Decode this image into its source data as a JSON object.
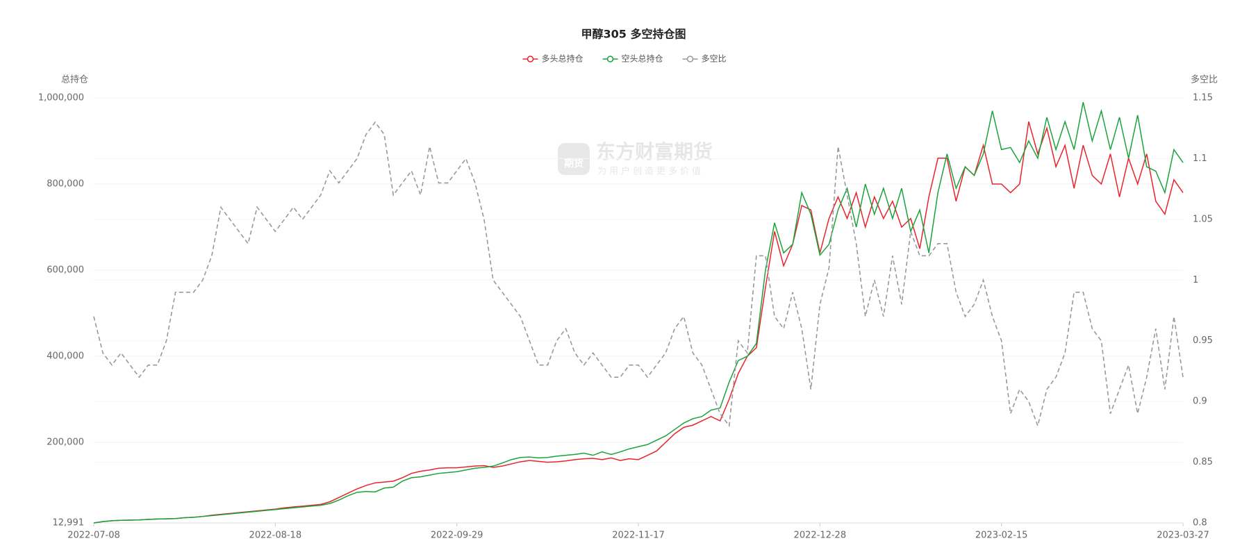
{
  "chart_data": {
    "type": "line",
    "title": "甲醇305 多空持仓图",
    "y_label": "总持仓",
    "y2_label": "多空比",
    "watermark": [
      "东方财富期货",
      "为用户创造更多价值",
      "期货"
    ],
    "grid": true,
    "legend": "top",
    "categories": [
      "2022-07-08",
      null,
      null,
      null,
      null,
      null,
      null,
      null,
      null,
      null,
      null,
      null,
      null,
      null,
      null,
      null,
      null,
      null,
      null,
      null,
      "2022-08-18",
      null,
      null,
      null,
      null,
      null,
      null,
      null,
      null,
      null,
      null,
      null,
      null,
      null,
      null,
      null,
      null,
      null,
      null,
      null,
      "2022-09-29",
      null,
      null,
      null,
      null,
      null,
      null,
      null,
      null,
      null,
      null,
      null,
      null,
      null,
      null,
      null,
      null,
      null,
      null,
      null,
      "2022-11-17",
      null,
      null,
      null,
      null,
      null,
      null,
      null,
      null,
      null,
      null,
      null,
      null,
      null,
      null,
      null,
      null,
      null,
      null,
      null,
      "2022-12-28",
      null,
      null,
      null,
      null,
      null,
      null,
      null,
      null,
      null,
      null,
      null,
      null,
      null,
      null,
      null,
      null,
      null,
      null,
      null,
      "2023-02-15",
      null,
      null,
      null,
      null,
      null,
      null,
      null,
      null,
      null,
      null,
      null,
      null,
      null,
      null,
      null,
      null,
      null,
      null,
      null,
      "2023-03-27"
    ],
    "ylim": [
      12991,
      1000000
    ],
    "yticks": [
      {
        "value": 12991,
        "label": "12,991"
      },
      {
        "value": 200000,
        "label": "200,000"
      },
      {
        "value": 400000,
        "label": "400,000"
      },
      {
        "value": 600000,
        "label": "600,000"
      },
      {
        "value": 800000,
        "label": "800,000"
      },
      {
        "value": 1000000,
        "label": "1,000,000"
      }
    ],
    "y2lim": [
      0.8,
      1.15
    ],
    "y2ticks": [
      0.8,
      0.85,
      0.9,
      0.95,
      1,
      1.05,
      1.1,
      1.15
    ],
    "series": [
      {
        "name": "多头总持仓",
        "color": "#e8232b",
        "dashed": false,
        "values": [
          12991,
          16000,
          18000,
          19000,
          19500,
          20000,
          21000,
          22000,
          22500,
          23000,
          25000,
          26000,
          28000,
          31000,
          33000,
          35000,
          37000,
          39000,
          41000,
          43000,
          45000,
          48000,
          50000,
          52000,
          54000,
          56000,
          62000,
          72000,
          82000,
          92000,
          100000,
          106000,
          108000,
          110000,
          118000,
          128000,
          133000,
          136000,
          140000,
          141000,
          141000,
          143000,
          145000,
          146000,
          142000,
          145000,
          150000,
          155000,
          158000,
          156000,
          154000,
          155000,
          157000,
          160000,
          162000,
          163000,
          160000,
          164000,
          158000,
          162000,
          160000,
          170000,
          180000,
          200000,
          220000,
          235000,
          240000,
          250000,
          260000,
          250000,
          300000,
          360000,
          400000,
          420000,
          560000,
          690000,
          610000,
          660000,
          750000,
          740000,
          640000,
          720000,
          770000,
          720000,
          780000,
          700000,
          770000,
          720000,
          760000,
          700000,
          720000,
          650000,
          770000,
          860000,
          860000,
          760000,
          840000,
          820000,
          890000,
          800000,
          800000,
          780000,
          800000,
          945000,
          870000,
          930000,
          840000,
          890000,
          790000,
          890000,
          820000,
          800000,
          870000,
          770000,
          860000,
          800000,
          870000,
          760000,
          730000,
          810000,
          780000
        ]
      },
      {
        "name": "空头总持仓",
        "color": "#1aa33a",
        "dashed": false,
        "values": [
          12991,
          16000,
          18000,
          19000,
          19500,
          20000,
          21000,
          22000,
          22500,
          23000,
          25000,
          26000,
          28000,
          30000,
          32000,
          34000,
          36000,
          38000,
          40000,
          42000,
          44000,
          46000,
          48000,
          50000,
          52000,
          54000,
          58000,
          66000,
          76000,
          84000,
          86000,
          85000,
          94000,
          96000,
          110000,
          118000,
          120000,
          124000,
          128000,
          130000,
          132000,
          136000,
          140000,
          142000,
          145000,
          152000,
          160000,
          165000,
          166000,
          164000,
          165000,
          168000,
          170000,
          172000,
          175000,
          170000,
          178000,
          172000,
          178000,
          185000,
          190000,
          195000,
          205000,
          215000,
          230000,
          245000,
          255000,
          260000,
          275000,
          280000,
          340000,
          390000,
          400000,
          430000,
          600000,
          710000,
          640000,
          660000,
          780000,
          730000,
          635000,
          660000,
          740000,
          790000,
          700000,
          800000,
          730000,
          790000,
          720000,
          790000,
          690000,
          740000,
          640000,
          780000,
          870000,
          790000,
          840000,
          820000,
          870000,
          970000,
          880000,
          885000,
          850000,
          900000,
          860000,
          955000,
          880000,
          945000,
          880000,
          990000,
          900000,
          970000,
          880000,
          955000,
          860000,
          960000,
          840000,
          830000,
          780000,
          880000,
          850000
        ]
      },
      {
        "name": "多空比",
        "color": "#999999",
        "dashed": true,
        "axis": "y2",
        "values": [
          0.97,
          0.94,
          0.93,
          0.94,
          0.93,
          0.92,
          0.93,
          0.93,
          0.95,
          0.99,
          0.99,
          0.99,
          1.0,
          1.02,
          1.06,
          1.05,
          1.04,
          1.03,
          1.06,
          1.05,
          1.04,
          1.05,
          1.06,
          1.05,
          1.06,
          1.07,
          1.09,
          1.08,
          1.09,
          1.1,
          1.12,
          1.13,
          1.12,
          1.07,
          1.08,
          1.09,
          1.07,
          1.11,
          1.08,
          1.08,
          1.09,
          1.1,
          1.08,
          1.05,
          1.0,
          0.99,
          0.98,
          0.97,
          0.95,
          0.93,
          0.93,
          0.95,
          0.96,
          0.94,
          0.93,
          0.94,
          0.93,
          0.92,
          0.92,
          0.93,
          0.93,
          0.92,
          0.93,
          0.94,
          0.96,
          0.97,
          0.94,
          0.93,
          0.91,
          0.89,
          0.88,
          0.95,
          0.94,
          1.02,
          1.02,
          0.97,
          0.96,
          0.99,
          0.96,
          0.91,
          0.98,
          1.01,
          1.11,
          1.07,
          1.03,
          0.97,
          1.0,
          0.97,
          1.02,
          0.98,
          1.04,
          1.02,
          1.02,
          1.03,
          1.03,
          0.99,
          0.97,
          0.98,
          1.0,
          0.97,
          0.95,
          0.89,
          0.91,
          0.9,
          0.88,
          0.91,
          0.92,
          0.94,
          0.99,
          0.99,
          0.96,
          0.95,
          0.89,
          0.91,
          0.93,
          0.89,
          0.92,
          0.96,
          0.91,
          0.97,
          0.92
        ]
      }
    ]
  }
}
